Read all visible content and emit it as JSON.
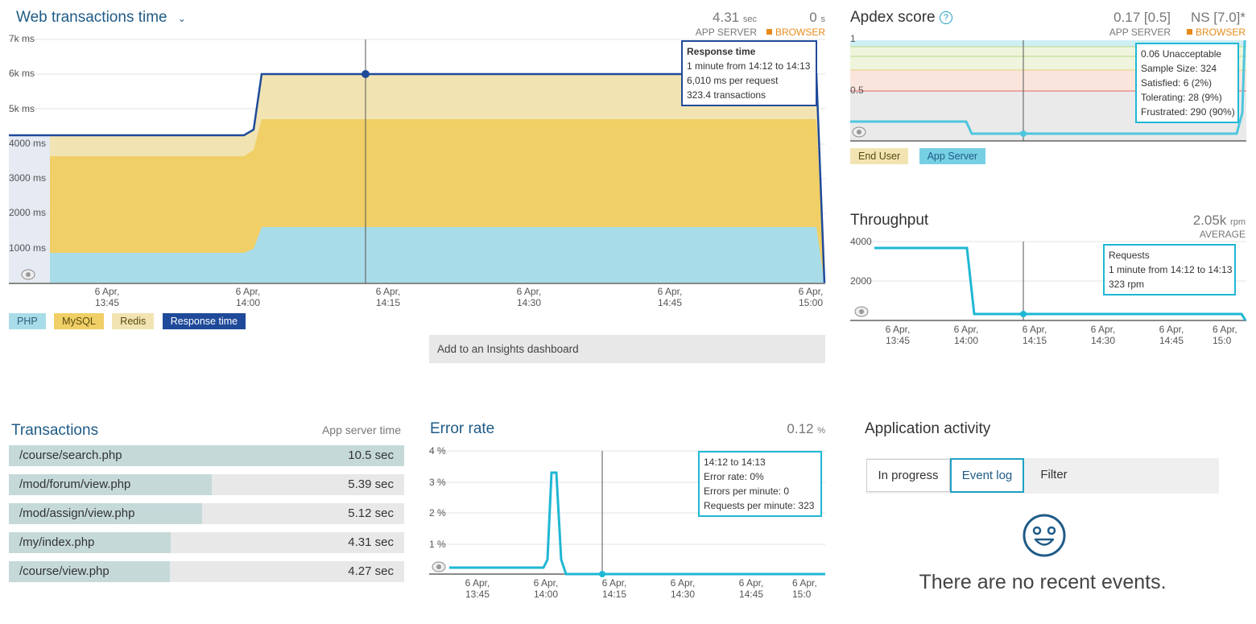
{
  "web_transactions": {
    "title": "Web transactions time",
    "app_server_value": "4.31",
    "app_server_unit": "sec",
    "app_server_label": "APP SERVER",
    "browser_value": "0",
    "browser_unit": "s",
    "browser_label": "BROWSER",
    "tooltip": {
      "title": "Response time",
      "line1": "1 minute from 14:12 to 14:13",
      "line2": "6,010 ms per request",
      "line3": "323.4 transactions"
    },
    "legend": [
      "PHP",
      "MySQL",
      "Redis",
      "Response time"
    ],
    "insights_button": "Add to an Insights dashboard",
    "chart_data": {
      "type": "area",
      "title": "Web transactions time",
      "xlabel": "",
      "ylabel": "",
      "y_tick_labels": [
        "7k ms",
        "6k ms",
        "5k ms",
        "4000 ms",
        "3000 ms",
        "2000 ms",
        "1000 ms"
      ],
      "x_tick_labels": [
        "6 Apr,\n13:45",
        "6 Apr,\n14:00",
        "6 Apr,\n14:15",
        "6 Apr,\n14:30",
        "6 Apr,\n14:45",
        "6 Apr,\n15:00"
      ],
      "ylim": [
        0,
        7000
      ],
      "x": [
        "13:33",
        "13:54",
        "14:01",
        "14:02",
        "15:01",
        "15:02"
      ],
      "series": [
        {
          "name": "PHP",
          "values": [
            880,
            880,
            1000,
            1620,
            1620,
            0
          ]
        },
        {
          "name": "MySQL",
          "values": [
            3650,
            3650,
            3800,
            4750,
            4750,
            0
          ]
        },
        {
          "name": "Redis",
          "values": [
            4300,
            4300,
            4400,
            6010,
            6010,
            0
          ]
        },
        {
          "name": "Response time",
          "values": [
            4300,
            4300,
            4400,
            6010,
            6010,
            0
          ]
        }
      ],
      "colors": {
        "PHP": "#a8dce8",
        "MySQL": "#f0cf66",
        "Redis": "#f2e4b2",
        "Response time": "#1f4a9a"
      }
    }
  },
  "apdex": {
    "title": "Apdex score",
    "app_server_value": "0.17 [0.5]",
    "app_server_label": "APP SERVER",
    "browser_value": "NS [7.0]*",
    "browser_label": "BROWSER",
    "tooltip": {
      "line1": "0.06 Unacceptable",
      "line2": "Sample Size: 324",
      "line3": "Satisfied: 6 (2%)",
      "line4": "Tolerating: 28 (9%)",
      "line5": "Frustrated: 290 (90%)"
    },
    "legend": [
      "End User",
      "App Server"
    ],
    "chart_data": {
      "type": "line",
      "y_tick_labels": [
        "1",
        "0.5"
      ],
      "ylim": [
        0,
        1
      ],
      "x": [
        "13:33",
        "14:00",
        "14:01",
        "15:00",
        "15:01"
      ],
      "series": [
        {
          "name": "App Server",
          "values": [
            0.2,
            0.2,
            0.06,
            0.06,
            1.0
          ]
        }
      ]
    }
  },
  "throughput": {
    "title": "Throughput",
    "value": "2.05k",
    "unit": "rpm",
    "sub": "AVERAGE",
    "tooltip": {
      "line1": "Requests",
      "line2": "1 minute from 14:12 to 14:13",
      "line3": "323 rpm"
    },
    "chart_data": {
      "type": "line",
      "y_tick_labels": [
        "4000",
        "2000"
      ],
      "x_tick_labels": [
        "6 Apr,\n13:45",
        "6 Apr,\n14:00",
        "6 Apr,\n14:15",
        "6 Apr,\n14:30",
        "6 Apr,\n14:45",
        "6 Apr,\n15:0"
      ],
      "ylim": [
        0,
        4000
      ],
      "x": [
        "13:36",
        "14:00",
        "14:01",
        "15:00",
        "15:01"
      ],
      "series": [
        {
          "name": "Requests",
          "values": [
            3700,
            3700,
            323,
            323,
            0
          ]
        }
      ]
    }
  },
  "transactions": {
    "title": "Transactions",
    "col_label": "App server time",
    "rows": [
      {
        "name": "/course/search.php",
        "value": "10.5 sec",
        "fraction": 1.0
      },
      {
        "name": "/mod/forum/view.php",
        "value": "5.39 sec",
        "fraction": 0.513
      },
      {
        "name": "/mod/assign/view.php",
        "value": "5.12 sec",
        "fraction": 0.488
      },
      {
        "name": "/my/index.php",
        "value": "4.31 sec",
        "fraction": 0.41
      },
      {
        "name": "/course/view.php",
        "value": "4.27 sec",
        "fraction": 0.407
      }
    ]
  },
  "error_rate": {
    "title": "Error rate",
    "value": "0.12",
    "unit": "%",
    "tooltip": {
      "line1": "14:12 to 14:13",
      "line2": "Error rate: 0%",
      "line3": "Errors per minute: 0",
      "line4": "Requests per minute: 323"
    },
    "chart_data": {
      "type": "line",
      "y_tick_labels": [
        "4 %",
        "3 %",
        "2 %",
        "1 %"
      ],
      "x_tick_labels": [
        "6 Apr,\n13:45",
        "6 Apr,\n14:00",
        "6 Apr,\n14:15",
        "6 Apr,\n14:30",
        "6 Apr,\n14:45",
        "6 Apr,\n15:0"
      ],
      "ylim": [
        0,
        4
      ],
      "x": [
        "13:36",
        "13:59",
        "14:00",
        "14:02",
        "14:03",
        "14:04",
        "14:05",
        "15:00"
      ],
      "series": [
        {
          "name": "Error rate",
          "values": [
            0.2,
            0.2,
            0.5,
            3.3,
            3.3,
            0.5,
            0,
            0
          ]
        }
      ]
    }
  },
  "activity": {
    "title": "Application activity",
    "tabs": [
      "In progress",
      "Event log",
      "Filter"
    ],
    "empty_message": "There are no recent events."
  }
}
